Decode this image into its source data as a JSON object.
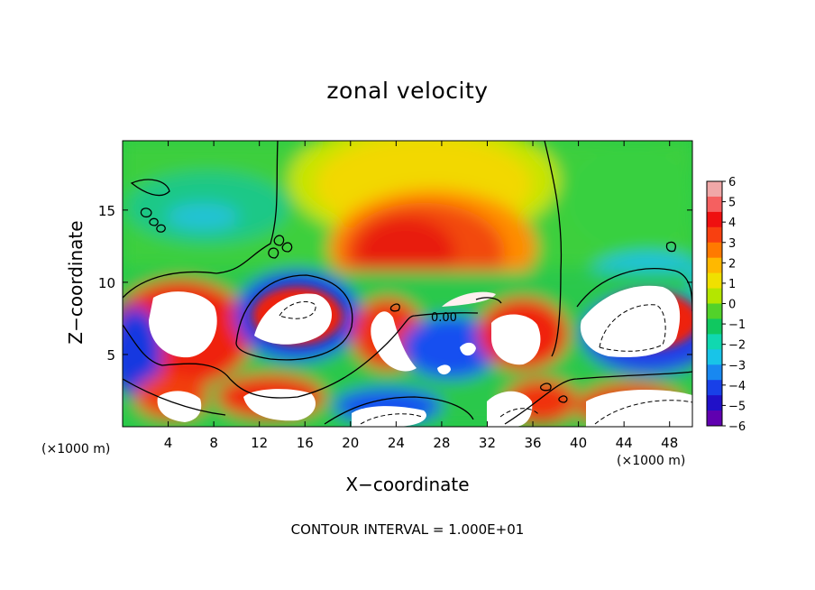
{
  "title": "zonal velocity",
  "chart_data": {
    "type": "heatmap",
    "title": "zonal velocity",
    "xlabel": "X−coordinate",
    "ylabel": "Z−coordinate",
    "x_unit": "(×1000 m)",
    "x_unit_right": "(×1000 m)",
    "xlim": [
      0,
      50
    ],
    "ylim": [
      0,
      19.8
    ],
    "x_ticks": [
      4,
      8,
      12,
      16,
      20,
      24,
      28,
      32,
      36,
      40,
      44,
      48
    ],
    "y_ticks": [
      5,
      10,
      15
    ],
    "contour_label": "0.00",
    "colorbar": {
      "ticks": [
        "6",
        "5",
        "4",
        "3",
        "2",
        "1",
        "0",
        "−1",
        "−2",
        "−3",
        "−4",
        "−5",
        "−6"
      ],
      "colors": [
        "#f0a8a8",
        "#f56060",
        "#ef1010",
        "#f84010",
        "#ff7a00",
        "#ffb800",
        "#f0e000",
        "#b4e600",
        "#52d22a",
        "#10c860",
        "#10d8b0",
        "#18c4e8",
        "#1888f0",
        "#1840e8",
        "#2010c8",
        "#6000b0"
      ]
    },
    "legend_placement": "right",
    "grid": false
  },
  "footer": "CONTOUR INTERVAL =  1.000E+01"
}
